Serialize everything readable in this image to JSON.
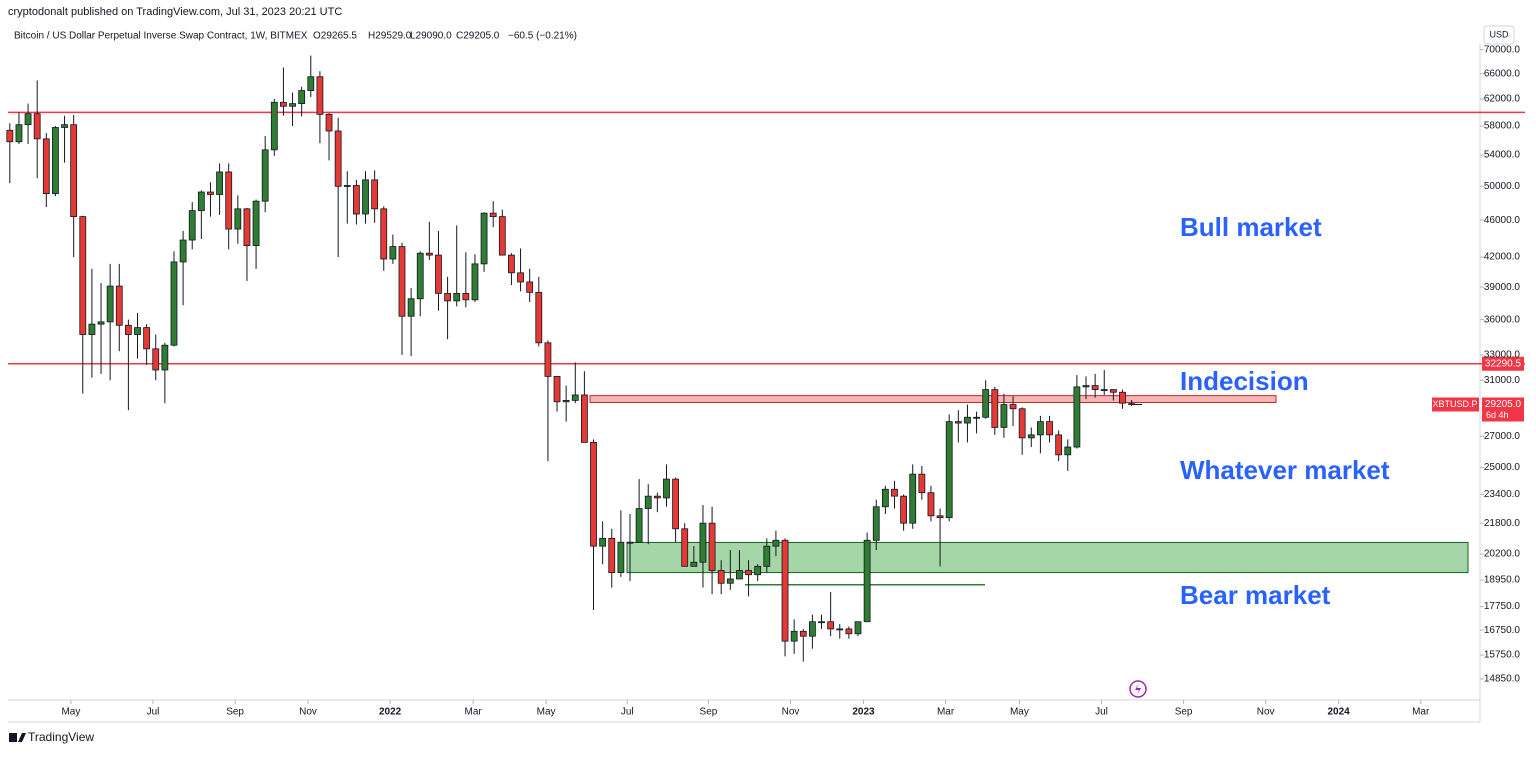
{
  "published": "cryptodonalt published on TradingView.com, Jul 31, 2023 20:21 UTC",
  "footer": "TradingView",
  "chart_data": {
    "type": "candlestick",
    "title": "Bitcoin / US Dollar Perpetual Inverse Swap Contract, 1W, BITMEX",
    "ohlc_text": [
      "O29265.5",
      "H29529.0",
      "L29090.0",
      "C29205.0",
      "−60.5 (−0.21%)"
    ],
    "currency": "USD",
    "up_color": "#2e7d32",
    "down_color": "#e53935",
    "log_scale": true,
    "grid": false,
    "open": [
      57400,
      55800,
      58200,
      59800,
      56200,
      49100,
      57800,
      58200,
      46400,
      34700,
      35600,
      35800,
      39100,
      35500,
      34700,
      35300,
      33500,
      31800,
      33800,
      41500,
      43800,
      47100,
      49300,
      49000,
      51800,
      45000,
      47300,
      43200,
      48200,
      54700,
      61500,
      60900,
      61300,
      63300,
      65500,
      59700,
      57300,
      50000,
      50100,
      46700,
      50800,
      47300,
      41800,
      43100,
      36300,
      37900,
      42400,
      42200,
      38400,
      37700,
      38400,
      37800,
      41300,
      46800,
      46400,
      42200,
      40400,
      39500,
      38500,
      34000,
      31300,
      29400,
      29500,
      29900,
      26600,
      20600,
      21000,
      19300,
      20800,
      20800,
      22600,
      23300,
      23200,
      24300,
      21500,
      19600,
      19800,
      21800,
      19400,
      18800,
      19000,
      19400,
      19200,
      19600,
      20600,
      20900,
      16300,
      16700,
      16500,
      17100,
      17100,
      16800,
      16800,
      16600,
      17100,
      20900,
      22700,
      23700,
      23300,
      21800,
      24600,
      23500,
      22200,
      22100,
      28000,
      27900,
      28300,
      28300,
      30300,
      27600,
      29200,
      28900,
      26900,
      27100,
      28000,
      27100,
      25800,
      26300,
      30500,
      30600,
      30300,
      30300,
      30100,
      29265.5
    ],
    "high": [
      58400,
      60000,
      61300,
      64900,
      57000,
      58000,
      59500,
      59600,
      46500,
      40800,
      39400,
      41300,
      41300,
      36000,
      36600,
      35600,
      34700,
      34000,
      42600,
      44800,
      48100,
      49500,
      50500,
      52900,
      52900,
      48900,
      47400,
      48400,
      56600,
      62000,
      67000,
      63000,
      63900,
      69000,
      66400,
      59900,
      59200,
      51900,
      50800,
      51900,
      52000,
      47600,
      44400,
      43500,
      38900,
      42600,
      45800,
      44800,
      40000,
      45400,
      42500,
      42300,
      46900,
      48200,
      47200,
      42400,
      42900,
      40800,
      40000,
      34200,
      31300,
      30600,
      32400,
      31700,
      26800,
      21900,
      21500,
      22500,
      22300,
      24300,
      24000,
      23500,
      25200,
      24400,
      21800,
      20600,
      22800,
      22700,
      19900,
      20400,
      20400,
      19900,
      19700,
      21000,
      21400,
      21000,
      17200,
      16800,
      17400,
      17400,
      18400,
      17000,
      16900,
      17100,
      21300,
      23100,
      23900,
      24200,
      23400,
      25200,
      25100,
      23900,
      22600,
      28500,
      28800,
      29200,
      28700,
      31000,
      30500,
      30000,
      29800,
      29000,
      27600,
      28400,
      28400,
      27400,
      26800,
      31400,
      31300,
      31500,
      31800,
      30300,
      30300,
      29529
    ],
    "low": [
      50400,
      55500,
      55500,
      51000,
      47500,
      48800,
      53000,
      42000,
      30000,
      31200,
      31500,
      31000,
      33300,
      28800,
      32700,
      32200,
      31000,
      29300,
      33700,
      37300,
      42800,
      43900,
      46400,
      46600,
      42800,
      43400,
      39600,
      40800,
      46900,
      53900,
      59500,
      58000,
      59400,
      62300,
      55600,
      53300,
      42000,
      45600,
      45500,
      45600,
      45700,
      40600,
      41300,
      33000,
      32900,
      36300,
      41700,
      36800,
      34300,
      37200,
      37100,
      37600,
      40500,
      45200,
      42200,
      39200,
      38600,
      37600,
      33700,
      25400,
      28700,
      28000,
      29300,
      26600,
      17600,
      19700,
      18600,
      19100,
      18900,
      20800,
      20700,
      22400,
      22700,
      20800,
      19600,
      19600,
      18600,
      18300,
      18300,
      18500,
      19000,
      18200,
      18900,
      19300,
      20100,
      15700,
      15800,
      15500,
      16000,
      16800,
      16500,
      16400,
      16400,
      16500,
      17100,
      20400,
      22300,
      22600,
      21400,
      21500,
      23100,
      21900,
      19600,
      21900,
      26600,
      26600,
      27200,
      28200,
      27100,
      26900,
      27700,
      25800,
      26300,
      25900,
      26600,
      25400,
      24800,
      26200,
      29600,
      29700,
      29900,
      29500,
      28900,
      29090
    ],
    "close": [
      55800,
      58200,
      59800,
      56200,
      49100,
      57800,
      58200,
      46400,
      34700,
      35600,
      35800,
      39100,
      35500,
      34700,
      35300,
      33500,
      31800,
      33800,
      41500,
      43800,
      47100,
      49300,
      49000,
      51800,
      45000,
      47300,
      43200,
      48200,
      54700,
      61500,
      60900,
      61300,
      63300,
      65500,
      59700,
      57300,
      50000,
      50100,
      46700,
      50800,
      47300,
      41800,
      43100,
      36300,
      37900,
      42400,
      42200,
      38400,
      37700,
      38400,
      37800,
      41300,
      46800,
      46400,
      42200,
      40400,
      39500,
      38500,
      34000,
      31300,
      29400,
      29500,
      29900,
      26600,
      20600,
      21000,
      19300,
      20800,
      20800,
      22600,
      23300,
      23200,
      24300,
      21500,
      19600,
      19800,
      21800,
      19400,
      18800,
      19000,
      19400,
      19200,
      19600,
      20600,
      20900,
      16300,
      16700,
      16500,
      17100,
      17100,
      16800,
      16800,
      16600,
      17100,
      20900,
      22700,
      23700,
      23300,
      21800,
      24600,
      23500,
      22200,
      22100,
      28000,
      27900,
      28300,
      28300,
      30300,
      27600,
      29200,
      28900,
      26900,
      27100,
      28000,
      27100,
      25800,
      26300,
      30500,
      30600,
      30300,
      30300,
      30100,
      29300,
      29205
    ],
    "xlim": [
      -0.2,
      161.2
    ],
    "xticks": [
      {
        "value": 6.7,
        "label": "May"
      },
      {
        "value": 15.7,
        "label": "Jul"
      },
      {
        "value": 24.7,
        "label": "Sep"
      },
      {
        "value": 32.7,
        "label": "Nov"
      },
      {
        "value": 41.7,
        "label": "2022"
      },
      {
        "value": 50.8,
        "label": "Mar"
      },
      {
        "value": 58.8,
        "label": "May"
      },
      {
        "value": 67.7,
        "label": "Jul"
      },
      {
        "value": 76.6,
        "label": "Sep"
      },
      {
        "value": 85.6,
        "label": "Nov"
      },
      {
        "value": 93.6,
        "label": "2023"
      },
      {
        "value": 102.6,
        "label": "Mar"
      },
      {
        "value": 110.7,
        "label": "May"
      },
      {
        "value": 119.7,
        "label": "Jul"
      },
      {
        "value": 128.7,
        "label": "Sep"
      },
      {
        "value": 137.7,
        "label": "Nov"
      },
      {
        "value": 145.7,
        "label": "2024"
      },
      {
        "value": 154.7,
        "label": "Mar"
      }
    ],
    "ylim": [
      14100,
      71000
    ],
    "yticks": [
      {
        "value": 70000,
        "label": "70000.0"
      },
      {
        "value": 66000,
        "label": "66000.0"
      },
      {
        "value": 62000,
        "label": "62000.0"
      },
      {
        "value": 58000,
        "label": "58000.0"
      },
      {
        "value": 54000,
        "label": "54000.0"
      },
      {
        "value": 50000,
        "label": "50000.0"
      },
      {
        "value": 46000,
        "label": "46000.0"
      },
      {
        "value": 42000,
        "label": "42000.0"
      },
      {
        "value": 39000,
        "label": "39000.0"
      },
      {
        "value": 36000,
        "label": "36000.0"
      },
      {
        "value": 33000,
        "label": "33000.0"
      },
      {
        "value": 31000,
        "label": "31000.0"
      },
      {
        "value": 27000,
        "label": "27000.0"
      },
      {
        "value": 25000,
        "label": "25000.0"
      },
      {
        "value": 23400,
        "label": "23400.0"
      },
      {
        "value": 21800,
        "label": "21800.0"
      },
      {
        "value": 20200,
        "label": "20200.0"
      },
      {
        "value": 18950,
        "label": "18950.0"
      },
      {
        "value": 17750,
        "label": "17750.0"
      },
      {
        "value": 16750,
        "label": "16750.0"
      },
      {
        "value": 15750,
        "label": "15750.0"
      },
      {
        "value": 14850,
        "label": "14850.0"
      }
    ],
    "levels": [
      {
        "value": 60000,
        "color": "#f23645"
      },
      {
        "value": 32290.5,
        "label": "32290.5",
        "color": "#f23645"
      }
    ],
    "zones": [
      {
        "from": 29350,
        "to": 29850,
        "color": "#f5b5b5",
        "border": "#c62828"
      },
      {
        "from": 19300,
        "to": 20790,
        "color": "#a5d6a7",
        "border": "#1b5e20"
      }
    ],
    "support_line": {
      "value": 18730,
      "color": "#2e7d32"
    },
    "last_price": {
      "value": 29205,
      "label": "29205.0",
      "symbol": "XBTUSD.P",
      "countdown": "6d 4h",
      "color": "#f23645"
    },
    "annotations": [
      "Bull market",
      "Indecision",
      "Whatever market",
      "Bear market"
    ]
  }
}
